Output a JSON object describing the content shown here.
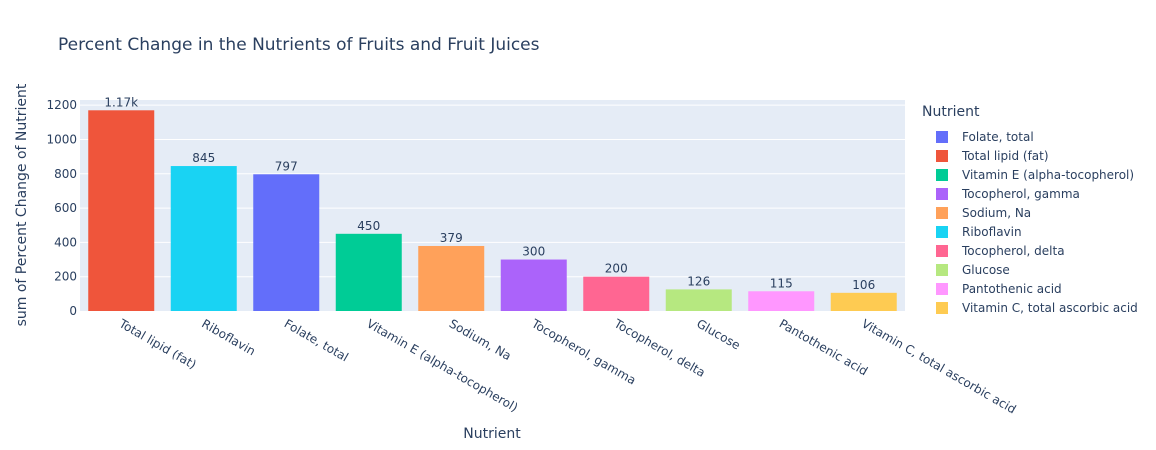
{
  "chart_data": {
    "type": "bar",
    "title": "Percent Change in the Nutrients of Fruits and Fruit Juices",
    "xlabel": "Nutrient",
    "ylabel": "sum of Percent Change of Nutrient",
    "ylim": [
      0,
      1230
    ],
    "yticks": [
      0,
      200,
      400,
      600,
      800,
      1000,
      1200
    ],
    "ytick_labels": [
      "0",
      "200",
      "400",
      "600",
      "800",
      "1000",
      "1200"
    ],
    "grid": true,
    "legend_position": "right",
    "legend_title": "Nutrient",
    "categories": [
      "Total lipid (fat)",
      "Riboflavin",
      "Folate, total",
      "Vitamin E (alpha-tocopherol)",
      "Sodium, Na",
      "Tocopherol, gamma",
      "Tocopherol, delta",
      "Glucose",
      "Pantothenic acid",
      "Vitamin C, total ascorbic acid"
    ],
    "values": [
      1170,
      845,
      797,
      450,
      379,
      300,
      200,
      126,
      115,
      106
    ],
    "data_labels": [
      "1.17k",
      "845",
      "797",
      "450",
      "379",
      "300",
      "200",
      "126",
      "115",
      "106"
    ],
    "colors": [
      "#EF553B",
      "#19D3F3",
      "#636EFA",
      "#00CC96",
      "#FFA15A",
      "#AB63FA",
      "#FF6692",
      "#B6E880",
      "#FF97FF",
      "#FECB52"
    ],
    "legend": [
      {
        "name": "Folate, total",
        "color": "#636EFA"
      },
      {
        "name": "Total lipid (fat)",
        "color": "#EF553B"
      },
      {
        "name": "Vitamin E (alpha-tocopherol)",
        "color": "#00CC96"
      },
      {
        "name": "Tocopherol, gamma",
        "color": "#AB63FA"
      },
      {
        "name": "Sodium, Na",
        "color": "#FFA15A"
      },
      {
        "name": "Riboflavin",
        "color": "#19D3F3"
      },
      {
        "name": "Tocopherol, delta",
        "color": "#FF6692"
      },
      {
        "name": "Glucose",
        "color": "#B6E880"
      },
      {
        "name": "Pantothenic acid",
        "color": "#FF97FF"
      },
      {
        "name": "Vitamin C, total ascorbic acid",
        "color": "#FECB52"
      }
    ]
  }
}
